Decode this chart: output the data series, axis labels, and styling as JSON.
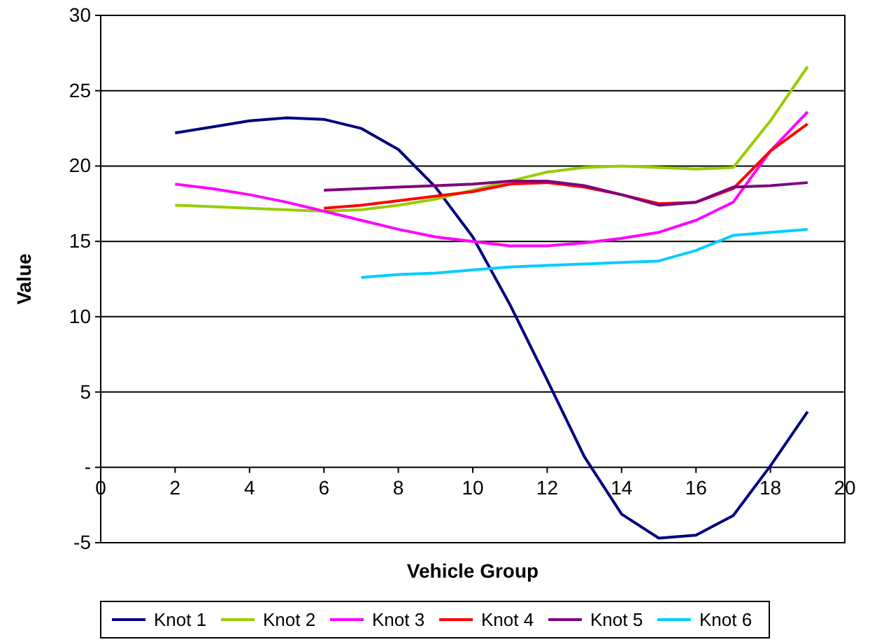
{
  "chart_data": {
    "type": "line",
    "xlabel": "Vehicle Group",
    "ylabel": "Value",
    "xlim": [
      0,
      20
    ],
    "xticks": [
      0,
      2,
      4,
      6,
      8,
      10,
      12,
      14,
      16,
      18,
      20
    ],
    "ylim": [
      -5,
      30
    ],
    "yticks": [
      -5,
      {
        "value": 0,
        "label": "-"
      },
      5,
      10,
      15,
      20,
      25,
      30
    ],
    "grid": "y",
    "legend": "bottom",
    "marker": "none",
    "line_style": "solid",
    "series": [
      {
        "name": "Knot 1",
        "color": "#000080",
        "x": [
          2,
          3,
          4,
          5,
          6,
          7,
          8,
          9,
          10,
          11,
          12,
          13,
          14,
          15,
          16,
          17,
          18,
          19
        ],
        "values": [
          22.2,
          22.6,
          23.0,
          23.2,
          23.1,
          22.5,
          21.1,
          18.6,
          15.3,
          10.8,
          5.8,
          0.7,
          -3.1,
          -4.7,
          -4.5,
          -3.2,
          0.1,
          3.7
        ]
      },
      {
        "name": "Knot 2",
        "color": "#99cc00",
        "x": [
          2,
          3,
          4,
          5,
          6,
          7,
          8,
          9,
          10,
          11,
          12,
          13,
          14,
          15,
          16,
          17,
          18,
          19
        ],
        "values": [
          17.4,
          17.3,
          17.2,
          17.1,
          17.0,
          17.1,
          17.4,
          17.8,
          18.4,
          19.0,
          19.6,
          19.9,
          20.0,
          19.9,
          19.8,
          19.9,
          23.0,
          26.6
        ]
      },
      {
        "name": "Knot 3",
        "color": "#ff00ff",
        "x": [
          2,
          3,
          4,
          5,
          6,
          7,
          8,
          9,
          10,
          11,
          12,
          13,
          14,
          15,
          16,
          17,
          18,
          19
        ],
        "values": [
          18.8,
          18.5,
          18.1,
          17.6,
          17.0,
          16.4,
          15.8,
          15.3,
          15.0,
          14.7,
          14.7,
          14.9,
          15.2,
          15.6,
          16.4,
          17.6,
          21.0,
          23.6
        ]
      },
      {
        "name": "Knot 4",
        "color": "#ff0000",
        "x": [
          6,
          7,
          8,
          9,
          10,
          11,
          12,
          13,
          14,
          15,
          16,
          17,
          18,
          19
        ],
        "values": [
          17.2,
          17.4,
          17.7,
          18.0,
          18.3,
          18.8,
          18.9,
          18.6,
          18.1,
          17.5,
          17.6,
          18.5,
          21.0,
          22.8
        ]
      },
      {
        "name": "Knot 5",
        "color": "#800080",
        "x": [
          6,
          7,
          8,
          9,
          10,
          11,
          12,
          13,
          14,
          15,
          16,
          17,
          18,
          19
        ],
        "values": [
          18.4,
          18.5,
          18.6,
          18.7,
          18.8,
          19.0,
          19.0,
          18.7,
          18.1,
          17.4,
          17.6,
          18.6,
          18.7,
          18.9
        ]
      },
      {
        "name": "Knot 6",
        "color": "#00ccff",
        "x": [
          7,
          8,
          9,
          10,
          11,
          12,
          13,
          14,
          15,
          16,
          17,
          18,
          19
        ],
        "values": [
          12.6,
          12.8,
          12.9,
          13.1,
          13.3,
          13.4,
          13.5,
          13.6,
          13.7,
          14.4,
          15.4,
          15.6,
          15.8
        ]
      }
    ]
  }
}
